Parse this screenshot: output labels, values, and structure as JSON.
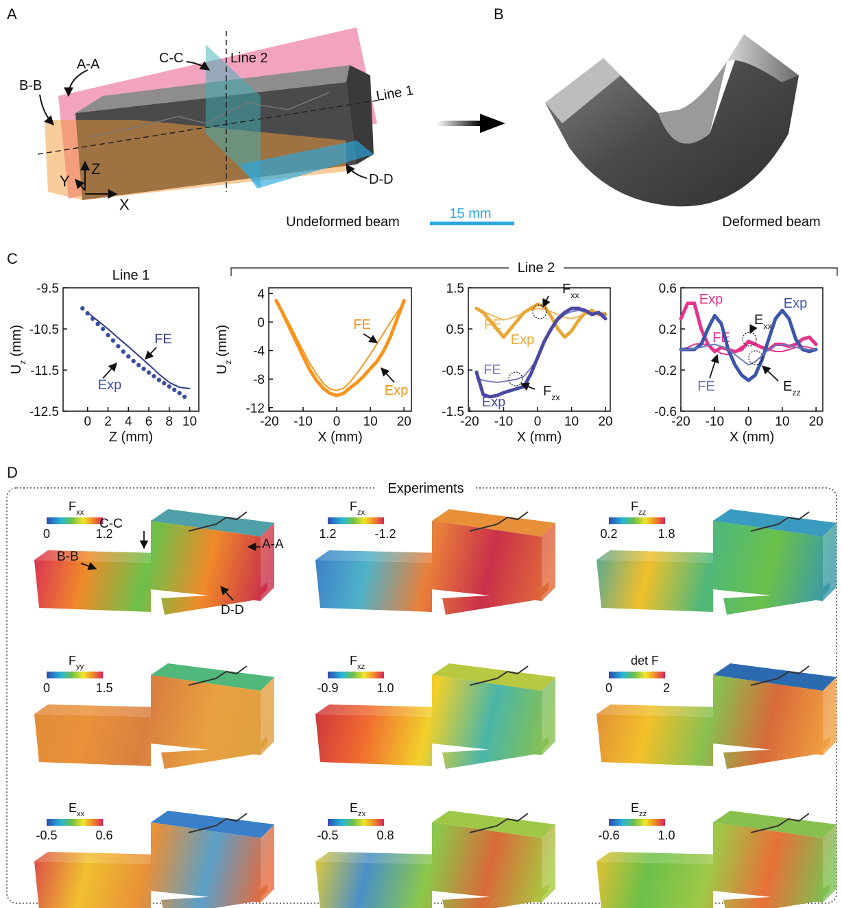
{
  "panel_labels": [
    "A",
    "B",
    "C",
    "D"
  ],
  "panel_a": {
    "section_aa": "A-A",
    "section_bb": "B-B",
    "section_cc": "C-C",
    "section_dd": "D-D",
    "line_1": "Line 1",
    "line_2": "Line 2",
    "axis_z": "Z",
    "axis_y": "Y",
    "axis_x": "X",
    "caption": "Undeformed beam",
    "scale_bar": "15 mm"
  },
  "panel_b": {
    "caption": "Deformed beam"
  },
  "panel_c": {
    "group_label": "Line 2"
  },
  "chart_data": [
    {
      "type": "line",
      "title": "Line 1",
      "xlabel": "Z (mm)",
      "ylabel": {
        "main": "U",
        "sub": "z",
        "unit": "(mm)"
      },
      "xlim": [
        -2.4,
        10.9
      ],
      "xticks": [
        0,
        2,
        4,
        6,
        8,
        10
      ],
      "ylim": [
        -12.5,
        -9.5
      ],
      "yticks": [
        -12.5,
        -11.5,
        -10.5,
        -9.5
      ],
      "series": [
        {
          "name": "FE",
          "color": "#2e3a8c",
          "style": "thin",
          "x": [
            0,
            1,
            2,
            3,
            4,
            5,
            6,
            7,
            8,
            9,
            10
          ],
          "values": [
            -10.1,
            -10.3,
            -10.5,
            -10.72,
            -10.93,
            -11.15,
            -11.37,
            -11.6,
            -11.8,
            -11.92,
            -11.95
          ]
        },
        {
          "name": "Exp",
          "color": "#3a4fa0",
          "style": "dots",
          "x": [
            -0.5,
            0,
            0.5,
            1,
            1.5,
            2,
            2.5,
            3,
            3.5,
            4,
            4.5,
            5,
            5.5,
            6,
            6.5,
            7,
            7.5,
            8,
            8.5,
            9,
            9.5
          ],
          "values": [
            -10.0,
            -10.12,
            -10.25,
            -10.38,
            -10.5,
            -10.65,
            -10.78,
            -10.92,
            -11.05,
            -11.17,
            -11.28,
            -11.38,
            -11.47,
            -11.56,
            -11.65,
            -11.74,
            -11.82,
            -11.9,
            -11.98,
            -12.06,
            -12.15
          ]
        }
      ]
    },
    {
      "type": "line",
      "xlabel": "X (mm)",
      "ylabel": {
        "main": "U",
        "sub": "z",
        "unit": "(mm)"
      },
      "xlim": [
        -20.2,
        22.2
      ],
      "xticks": [
        -20,
        -10,
        0,
        10,
        20
      ],
      "ylim": [
        -12.5,
        4.8
      ],
      "yticks": [
        -12,
        -8,
        -4,
        0,
        4
      ],
      "series": [
        {
          "name": "FE",
          "color": "#f7941d",
          "style": "thin",
          "x": [
            -18,
            -16,
            -14,
            -12,
            -10,
            -8,
            -6,
            -4,
            -2,
            0,
            2,
            4,
            6,
            8,
            10,
            12,
            14,
            16,
            18,
            20
          ],
          "values": [
            3,
            1.5,
            -0.3,
            -2.2,
            -4,
            -5.8,
            -7.3,
            -8.6,
            -9.4,
            -9.6,
            -9.3,
            -8.4,
            -7.2,
            -5.9,
            -4.5,
            -3,
            -1.5,
            0,
            1.4,
            2.8
          ]
        },
        {
          "name": "Exp",
          "color": "#f7941d",
          "style": "thick",
          "x": [
            -18,
            -16,
            -14,
            -12,
            -10,
            -8,
            -6,
            -4,
            -2,
            0,
            2,
            4,
            6,
            8,
            10,
            12,
            14,
            16,
            18,
            20
          ],
          "values": [
            3,
            1.2,
            -0.8,
            -2.8,
            -4.8,
            -6.7,
            -8.2,
            -9.3,
            -10,
            -10.3,
            -10,
            -9.2,
            -8.5,
            -7.6,
            -6.5,
            -5.5,
            -4,
            -2,
            0.5,
            3
          ]
        }
      ]
    },
    {
      "type": "line",
      "xlabel": "X (mm)",
      "xlim": [
        -20.4,
        21.4
      ],
      "xticks": [
        -20,
        -10,
        0,
        10,
        20
      ],
      "ylim": [
        -1.5,
        1.5
      ],
      "yticks": [
        -1.5,
        -0.5,
        0.5,
        1.5
      ],
      "annotations": [
        {
          "main": "F",
          "sub": "xx"
        },
        {
          "main": "F",
          "sub": "zx"
        }
      ],
      "series": [
        {
          "name": "FE",
          "color": "#f0b45a",
          "style": "thin",
          "x": [
            -18,
            -16,
            -14,
            -12,
            -10,
            -8,
            -6,
            -4,
            -2,
            0,
            2,
            4,
            6,
            8,
            10,
            12,
            14,
            16,
            18,
            20
          ],
          "values": [
            0.98,
            0.92,
            0.85,
            0.78,
            0.72,
            0.76,
            0.82,
            0.9,
            0.96,
            1.0,
            0.98,
            0.92,
            0.85,
            0.78,
            0.75,
            0.8,
            0.85,
            0.88,
            0.9,
            0.9
          ]
        },
        {
          "name": "Exp",
          "color": "#e8a838",
          "style": "thick",
          "x": [
            -18,
            -16,
            -14,
            -12,
            -10,
            -8,
            -6,
            -4,
            -2,
            0,
            2,
            4,
            6,
            8,
            10,
            12,
            14,
            16,
            18,
            20
          ],
          "values": [
            1.0,
            0.9,
            0.7,
            0.5,
            0.3,
            0.5,
            0.7,
            0.9,
            1.0,
            1.1,
            1.05,
            0.8,
            0.5,
            0.3,
            0.45,
            0.7,
            0.9,
            0.95,
            0.85,
            0.85
          ]
        },
        {
          "name": "FE",
          "color": "#7d7cc0",
          "style": "thin",
          "x": [
            -18,
            -16,
            -14,
            -12,
            -10,
            -8,
            -6,
            -4,
            -2,
            0,
            2,
            4,
            6,
            8,
            10,
            12,
            14,
            16,
            18,
            20
          ],
          "values": [
            -0.7,
            -0.75,
            -0.78,
            -0.8,
            -0.78,
            -0.75,
            -0.72,
            -0.65,
            -0.45,
            -0.2,
            0.15,
            0.45,
            0.7,
            0.85,
            0.92,
            0.95,
            0.92,
            0.9,
            0.88,
            0.85
          ]
        },
        {
          "name": "Exp",
          "color": "#4b4aa3",
          "style": "thick",
          "x": [
            -18,
            -16,
            -14,
            -12,
            -10,
            -8,
            -6,
            -4,
            -2,
            0,
            2,
            4,
            6,
            8,
            10,
            12,
            14,
            16,
            18,
            20
          ],
          "values": [
            -0.55,
            -1.1,
            -1.15,
            -1.12,
            -1.05,
            -1.0,
            -0.95,
            -0.9,
            -0.6,
            -0.2,
            0.2,
            0.5,
            0.75,
            0.9,
            1.0,
            1.0,
            0.95,
            0.85,
            0.9,
            0.75
          ]
        }
      ]
    },
    {
      "type": "line",
      "xlabel": "X (mm)",
      "xlim": [
        -20,
        22
      ],
      "xticks": [
        -20,
        -10,
        0,
        10,
        20
      ],
      "ylim": [
        -0.6,
        0.6
      ],
      "yticks": [
        -0.6,
        -0.2,
        0.2,
        0.6
      ],
      "annotations": [
        {
          "main": "E",
          "sub": "xx"
        },
        {
          "main": "E",
          "sub": "zz"
        }
      ],
      "series": [
        {
          "name": "Exp",
          "color": "#e6338c",
          "style": "thick",
          "x": [
            -20,
            -18,
            -16,
            -14,
            -12,
            -10,
            -8,
            -6,
            -4,
            -2,
            0,
            2,
            4,
            6,
            8,
            10,
            12,
            14,
            16,
            18,
            20
          ],
          "values": [
            0.3,
            0.45,
            0.45,
            0.2,
            0.05,
            -0.02,
            0.02,
            0.0,
            -0.02,
            0.0,
            0.08,
            0.05,
            0.02,
            0.0,
            0.05,
            0.05,
            0.03,
            0.05,
            0.1,
            0.12,
            0.05
          ]
        },
        {
          "name": "FE",
          "color": "#e6338c",
          "style": "thin",
          "x": [
            -20,
            -18,
            -16,
            -14,
            -12,
            -10,
            -8,
            -6,
            -4,
            -2,
            0,
            2,
            4,
            6,
            8,
            10,
            12,
            14,
            16,
            18,
            20
          ],
          "values": [
            0.0,
            0.02,
            0.05,
            0.06,
            0.04,
            0.0,
            -0.04,
            -0.05,
            -0.02,
            0.03,
            0.06,
            0.05,
            0.02,
            0.0,
            -0.02,
            -0.02,
            0.0,
            0.02,
            0.03,
            0.02,
            0.0
          ]
        },
        {
          "name": "Exp",
          "color": "#3b55a8",
          "style": "thick",
          "x": [
            -20,
            -18,
            -16,
            -14,
            -12,
            -10,
            -8,
            -6,
            -4,
            -2,
            0,
            2,
            4,
            6,
            8,
            10,
            12,
            14,
            16,
            18,
            20
          ],
          "values": [
            0.0,
            0.0,
            0.0,
            0.05,
            0.2,
            0.33,
            0.25,
            0.0,
            -0.15,
            -0.25,
            -0.3,
            -0.25,
            -0.1,
            0.1,
            0.3,
            0.38,
            0.3,
            0.1,
            0.0,
            -0.02,
            0.0
          ]
        },
        {
          "name": "FE",
          "color": "#6b78b8",
          "style": "thin",
          "x": [
            -20,
            -18,
            -16,
            -14,
            -12,
            -10,
            -8,
            -6,
            -4,
            -2,
            0,
            2,
            4,
            6,
            8,
            10,
            12,
            14,
            16,
            18,
            20
          ],
          "values": [
            0.0,
            0.0,
            0.01,
            0.02,
            0.04,
            0.05,
            0.03,
            0.0,
            -0.05,
            -0.1,
            -0.15,
            -0.12,
            -0.06,
            0.0,
            0.04,
            0.05,
            0.04,
            0.02,
            0.01,
            0.0,
            0.0
          ]
        }
      ]
    }
  ],
  "panel_d": {
    "title": "Experiments",
    "maps": [
      {
        "label": "F",
        "sub": "xx",
        "range": [
          "0",
          "1.2"
        ]
      },
      {
        "label": "F",
        "sub": "zx",
        "range": [
          "1.2",
          "-1.2"
        ]
      },
      {
        "label": "F",
        "sub": "zz",
        "range": [
          "0.2",
          "1.8"
        ]
      },
      {
        "label": "F",
        "sub": "yy",
        "range": [
          "0",
          "1.5"
        ]
      },
      {
        "label": "F",
        "sub": "xz",
        "range": [
          "-0.9",
          "1.0"
        ]
      },
      {
        "label": "det F",
        "range": [
          "0",
          "2"
        ]
      },
      {
        "label": "E",
        "sub": "xx",
        "range": [
          "-0.5",
          "0.6"
        ]
      },
      {
        "label": "E",
        "sub": "zx",
        "range": [
          "-0.5",
          "0.8"
        ]
      },
      {
        "label": "E",
        "sub": "zz",
        "range": [
          "-0.6",
          "1.0"
        ]
      }
    ],
    "annotations": [
      "C-C",
      "B-B",
      "A-A",
      "D-D"
    ]
  }
}
